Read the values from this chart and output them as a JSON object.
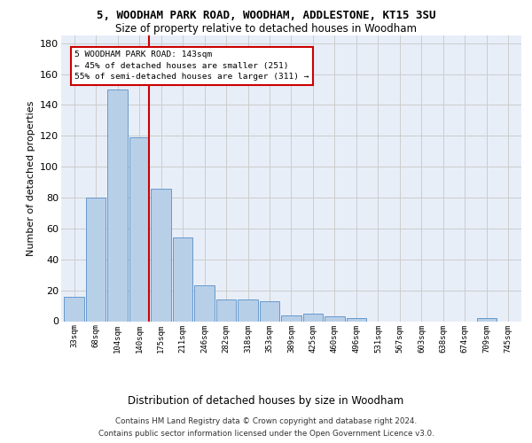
{
  "title1": "5, WOODHAM PARK ROAD, WOODHAM, ADDLESTONE, KT15 3SU",
  "title2": "Size of property relative to detached houses in Woodham",
  "xlabel": "Distribution of detached houses by size in Woodham",
  "ylabel": "Number of detached properties",
  "bar_labels": [
    "33sqm",
    "68sqm",
    "104sqm",
    "140sqm",
    "175sqm",
    "211sqm",
    "246sqm",
    "282sqm",
    "318sqm",
    "353sqm",
    "389sqm",
    "425sqm",
    "460sqm",
    "496sqm",
    "531sqm",
    "567sqm",
    "603sqm",
    "638sqm",
    "674sqm",
    "709sqm",
    "745sqm"
  ],
  "bar_values": [
    16,
    80,
    150,
    119,
    86,
    54,
    23,
    14,
    14,
    13,
    4,
    5,
    3,
    2,
    0,
    0,
    0,
    0,
    0,
    2,
    0
  ],
  "bar_color": "#b8cfe8",
  "bar_edgecolor": "#6699cc",
  "vline_color": "#cc0000",
  "annotation_line1": "5 WOODHAM PARK ROAD: 143sqm",
  "annotation_line2": "← 45% of detached houses are smaller (251)",
  "annotation_line3": "55% of semi-detached houses are larger (311) →",
  "annotation_box_edgecolor": "#cc0000",
  "grid_color": "#cccccc",
  "ylim": [
    0,
    185
  ],
  "yticks": [
    0,
    20,
    40,
    60,
    80,
    100,
    120,
    140,
    160,
    180
  ],
  "footer1": "Contains HM Land Registry data © Crown copyright and database right 2024.",
  "footer2": "Contains public sector information licensed under the Open Government Licence v3.0.",
  "bg_color": "#e8eef8"
}
